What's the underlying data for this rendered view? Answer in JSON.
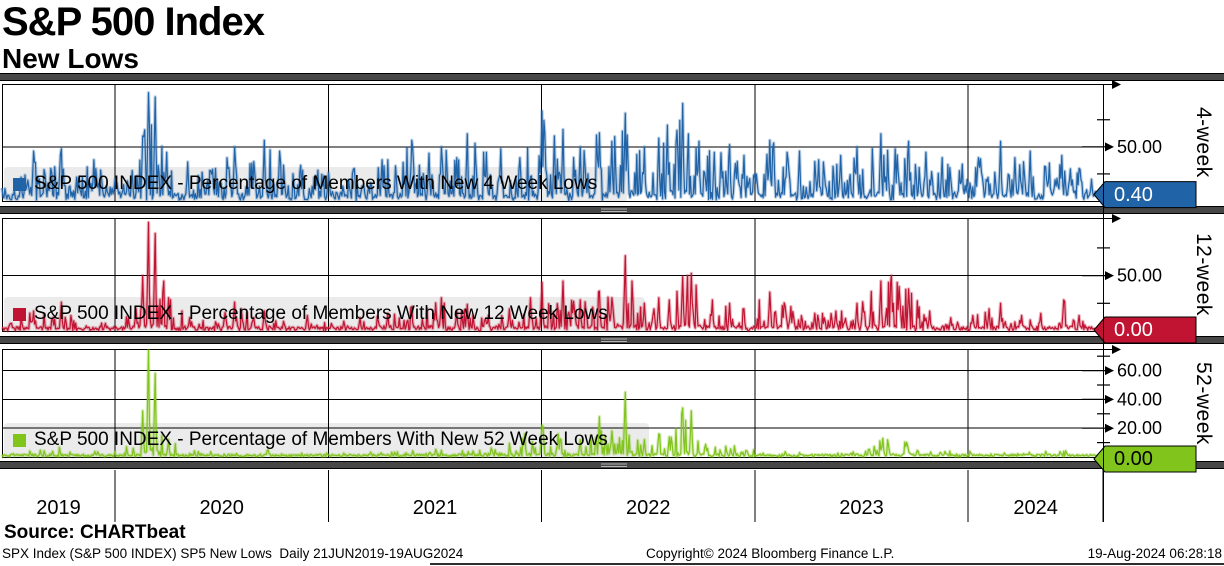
{
  "header": {
    "title": "S&P 500 Index",
    "subtitle": "New Lows"
  },
  "source_label": "Source: CHARTbeat",
  "footer": {
    "left": "SPX Index (S&P 500 INDEX) SP5 New Lows  Daily 21JUN2019-19AUG2024",
    "center": "Copyright© 2024 Bloomberg Finance L.P.",
    "right": "19-Aug-2024 06:28:18"
  },
  "ui_colors": {
    "divider_bar": "#474747",
    "divider_edge": "#000000",
    "legend_band": "#ebebeb",
    "grid_line": "#000000",
    "frame": "#000000"
  },
  "chart_data": {
    "type": "line",
    "title": "S&P 500 Index - New Lows",
    "x_domain_years": [
      2019.47,
      2024.632
    ],
    "x_axis": {
      "tick_years": [
        2020,
        2021,
        2022,
        2023,
        2024
      ],
      "segment_labels": [
        "2019",
        "2020",
        "2021",
        "2022",
        "2023",
        "2024"
      ]
    },
    "panels": [
      {
        "id": "4-week",
        "panel_label": "4-week",
        "legend": "S&P 500 INDEX - Percentage of Members With New 4 Week Lows",
        "color": "#2163a7",
        "last_value": 0.4,
        "last_value_label": "0.40",
        "badge_text_color": "#ffffff",
        "ylim": [
          0,
          108
        ],
        "major_ticks": [
          {
            "value": 50,
            "label": "50.00"
          }
        ],
        "minor_ticks": [
          25,
          75
        ],
        "keypoints": [
          [
            2019.47,
            12
          ],
          [
            2019.56,
            22
          ],
          [
            2019.62,
            46
          ],
          [
            2019.7,
            30
          ],
          [
            2019.75,
            48
          ],
          [
            2019.82,
            22
          ],
          [
            2019.9,
            38
          ],
          [
            2020.0,
            20
          ],
          [
            2020.08,
            28
          ],
          [
            2020.13,
            60
          ],
          [
            2020.155,
            100
          ],
          [
            2020.19,
            96
          ],
          [
            2020.24,
            45
          ],
          [
            2020.34,
            36
          ],
          [
            2020.45,
            28
          ],
          [
            2020.56,
            50
          ],
          [
            2020.64,
            35
          ],
          [
            2020.7,
            56
          ],
          [
            2020.77,
            46
          ],
          [
            2020.87,
            33
          ],
          [
            2021.0,
            26
          ],
          [
            2021.12,
            30
          ],
          [
            2021.25,
            38
          ],
          [
            2021.39,
            56
          ],
          [
            2021.47,
            44
          ],
          [
            2021.53,
            50
          ],
          [
            2021.6,
            40
          ],
          [
            2021.65,
            62
          ],
          [
            2021.74,
            45
          ],
          [
            2021.81,
            48
          ],
          [
            2021.9,
            40
          ],
          [
            2022.0,
            83
          ],
          [
            2022.06,
            60
          ],
          [
            2022.1,
            66
          ],
          [
            2022.18,
            50
          ],
          [
            2022.27,
            63
          ],
          [
            2022.33,
            55
          ],
          [
            2022.39,
            81
          ],
          [
            2022.48,
            50
          ],
          [
            2022.55,
            58
          ],
          [
            2022.59,
            70
          ],
          [
            2022.66,
            90
          ],
          [
            2022.74,
            55
          ],
          [
            2022.81,
            45
          ],
          [
            2022.88,
            52
          ],
          [
            2022.95,
            42
          ],
          [
            2023.07,
            56
          ],
          [
            2023.15,
            45
          ],
          [
            2023.21,
            46
          ],
          [
            2023.3,
            38
          ],
          [
            2023.4,
            42
          ],
          [
            2023.48,
            50
          ],
          [
            2023.59,
            62
          ],
          [
            2023.66,
            48
          ],
          [
            2023.72,
            55
          ],
          [
            2023.8,
            45
          ],
          [
            2023.88,
            40
          ],
          [
            2023.97,
            34
          ],
          [
            2024.05,
            40
          ],
          [
            2024.15,
            55
          ],
          [
            2024.22,
            40
          ],
          [
            2024.29,
            46
          ],
          [
            2024.38,
            35
          ],
          [
            2024.44,
            42
          ],
          [
            2024.52,
            30
          ],
          [
            2024.58,
            20
          ],
          [
            2024.632,
            0.4
          ]
        ]
      },
      {
        "id": "12-week",
        "panel_label": "12-week",
        "legend": "S&P 500 INDEX - Percentage of Members With New 12 Week Lows",
        "color": "#c01432",
        "last_value": 0.0,
        "last_value_label": "0.00",
        "badge_text_color": "#ffffff",
        "ylim": [
          0,
          102
        ],
        "major_ticks": [
          {
            "value": 50,
            "label": "50.00"
          }
        ],
        "minor_ticks": [
          25,
          75
        ],
        "keypoints": [
          [
            2019.47,
            8
          ],
          [
            2019.62,
            18
          ],
          [
            2019.75,
            26
          ],
          [
            2019.85,
            10
          ],
          [
            2020.0,
            8
          ],
          [
            2020.1,
            20
          ],
          [
            2020.13,
            50
          ],
          [
            2020.155,
            98
          ],
          [
            2020.19,
            88
          ],
          [
            2020.25,
            30
          ],
          [
            2020.35,
            12
          ],
          [
            2020.45,
            10
          ],
          [
            2020.56,
            26
          ],
          [
            2020.65,
            12
          ],
          [
            2020.7,
            18
          ],
          [
            2020.8,
            10
          ],
          [
            2020.9,
            14
          ],
          [
            2021.0,
            9
          ],
          [
            2021.15,
            12
          ],
          [
            2021.28,
            16
          ],
          [
            2021.39,
            22
          ],
          [
            2021.53,
            30
          ],
          [
            2021.6,
            18
          ],
          [
            2021.65,
            24
          ],
          [
            2021.75,
            14
          ],
          [
            2021.85,
            20
          ],
          [
            2021.95,
            30
          ],
          [
            2022.0,
            44
          ],
          [
            2022.1,
            45
          ],
          [
            2022.18,
            28
          ],
          [
            2022.27,
            36
          ],
          [
            2022.33,
            30
          ],
          [
            2022.39,
            68
          ],
          [
            2022.48,
            25
          ],
          [
            2022.55,
            30
          ],
          [
            2022.6,
            28
          ],
          [
            2022.66,
            49
          ],
          [
            2022.7,
            52
          ],
          [
            2022.8,
            28
          ],
          [
            2022.88,
            25
          ],
          [
            2022.95,
            20
          ],
          [
            2023.07,
            35
          ],
          [
            2023.17,
            22
          ],
          [
            2023.28,
            16
          ],
          [
            2023.38,
            18
          ],
          [
            2023.48,
            25
          ],
          [
            2023.59,
            45
          ],
          [
            2023.64,
            50
          ],
          [
            2023.72,
            38
          ],
          [
            2023.82,
            18
          ],
          [
            2023.92,
            12
          ],
          [
            2024.02,
            14
          ],
          [
            2024.1,
            20
          ],
          [
            2024.15,
            25
          ],
          [
            2024.25,
            14
          ],
          [
            2024.34,
            16
          ],
          [
            2024.45,
            28
          ],
          [
            2024.52,
            14
          ],
          [
            2024.58,
            8
          ],
          [
            2024.632,
            0
          ]
        ]
      },
      {
        "id": "52-week",
        "panel_label": "52-week",
        "legend": "S&P 500 INDEX - Percentage of Members With New 52 Week Lows",
        "color": "#80c41c",
        "last_value": 0.0,
        "last_value_label": "0.00",
        "badge_text_color": "#000000",
        "ylim": [
          0,
          75
        ],
        "major_ticks": [
          {
            "value": 60,
            "label": "60.00"
          },
          {
            "value": 40,
            "label": "40.00"
          },
          {
            "value": 20,
            "label": "20.00"
          }
        ],
        "minor_ticks": [
          10,
          30,
          50,
          70
        ],
        "keypoints": [
          [
            2019.47,
            3
          ],
          [
            2019.62,
            6
          ],
          [
            2019.75,
            8
          ],
          [
            2019.88,
            4
          ],
          [
            2020.0,
            4
          ],
          [
            2020.1,
            10
          ],
          [
            2020.13,
            32
          ],
          [
            2020.155,
            74
          ],
          [
            2020.19,
            58
          ],
          [
            2020.25,
            12
          ],
          [
            2020.35,
            5
          ],
          [
            2020.5,
            4
          ],
          [
            2020.7,
            5
          ],
          [
            2020.9,
            3
          ],
          [
            2021.1,
            3
          ],
          [
            2021.3,
            4
          ],
          [
            2021.5,
            6
          ],
          [
            2021.65,
            5
          ],
          [
            2021.8,
            8
          ],
          [
            2021.92,
            16
          ],
          [
            2022.0,
            22
          ],
          [
            2022.08,
            16
          ],
          [
            2022.18,
            12
          ],
          [
            2022.27,
            28
          ],
          [
            2022.33,
            18
          ],
          [
            2022.39,
            45
          ],
          [
            2022.48,
            12
          ],
          [
            2022.55,
            16
          ],
          [
            2022.6,
            14
          ],
          [
            2022.66,
            34
          ],
          [
            2022.7,
            32
          ],
          [
            2022.8,
            10
          ],
          [
            2022.9,
            8
          ],
          [
            2023.0,
            6
          ],
          [
            2023.15,
            4
          ],
          [
            2023.3,
            4
          ],
          [
            2023.45,
            6
          ],
          [
            2023.6,
            13
          ],
          [
            2023.68,
            10
          ],
          [
            2023.72,
            11
          ],
          [
            2023.85,
            5
          ],
          [
            2023.95,
            4
          ],
          [
            2024.08,
            6
          ],
          [
            2024.18,
            5
          ],
          [
            2024.3,
            4
          ],
          [
            2024.42,
            5
          ],
          [
            2024.52,
            4
          ],
          [
            2024.632,
            0
          ]
        ]
      }
    ]
  }
}
